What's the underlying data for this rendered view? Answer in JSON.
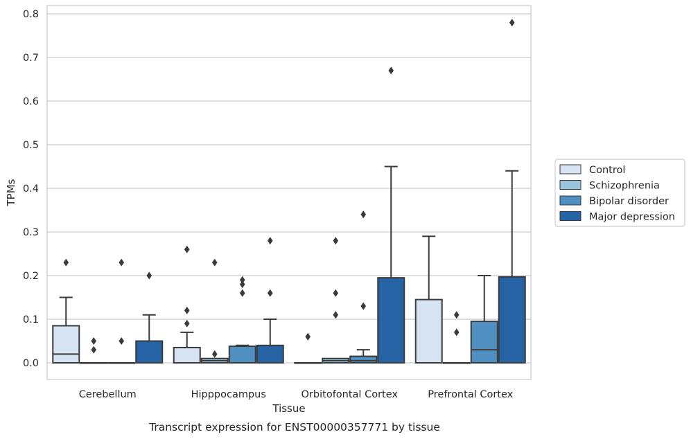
{
  "chart_data": {
    "type": "box",
    "title": "",
    "caption": "Transcript expression for ENST00000357771 by tissue",
    "xlabel": "Tissue",
    "ylabel": "TPMs",
    "ylim": [
      -0.04,
      0.82
    ],
    "yticks": [
      "0.0",
      "0.1",
      "0.2",
      "0.3",
      "0.4",
      "0.5",
      "0.6",
      "0.7",
      "0.8"
    ],
    "grid": true,
    "legend_position": "right",
    "categories": [
      "Cerebellum",
      "Hipppocampus",
      "Orbitofontal Cortex",
      "Prefrontal Cortex"
    ],
    "series": [
      {
        "name": "Control",
        "color": "#d5e3f2",
        "boxes": [
          {
            "q1": 0.0,
            "median": 0.02,
            "q3": 0.085,
            "whisker_low": 0.0,
            "whisker_high": 0.15,
            "outliers": [
              0.23
            ]
          },
          {
            "q1": 0.0,
            "median": 0.0,
            "q3": 0.035,
            "whisker_low": 0.0,
            "whisker_high": 0.07,
            "outliers": [
              0.09,
              0.12,
              0.26
            ]
          },
          {
            "q1": 0.0,
            "median": 0.0,
            "q3": 0.0,
            "whisker_low": 0.0,
            "whisker_high": 0.0,
            "outliers": [
              0.06
            ]
          },
          {
            "q1": 0.0,
            "median": 0.0,
            "q3": 0.145,
            "whisker_low": 0.0,
            "whisker_high": 0.29,
            "outliers": []
          }
        ]
      },
      {
        "name": "Schizophrenia",
        "color": "#9ac3de",
        "boxes": [
          {
            "q1": 0.0,
            "median": 0.0,
            "q3": 0.0,
            "whisker_low": 0.0,
            "whisker_high": 0.0,
            "outliers": [
              0.03,
              0.05
            ]
          },
          {
            "q1": 0.0,
            "median": 0.005,
            "q3": 0.01,
            "whisker_low": 0.0,
            "whisker_high": 0.01,
            "outliers": [
              0.02,
              0.23
            ]
          },
          {
            "q1": 0.0,
            "median": 0.005,
            "q3": 0.01,
            "whisker_low": 0.0,
            "whisker_high": 0.01,
            "outliers": [
              0.11,
              0.16,
              0.28
            ]
          },
          {
            "q1": 0.0,
            "median": 0.0,
            "q3": 0.0,
            "whisker_low": 0.0,
            "whisker_high": 0.0,
            "outliers": [
              0.07,
              0.11
            ]
          }
        ]
      },
      {
        "name": "Bipolar disorder",
        "color": "#4f8fc2",
        "boxes": [
          {
            "q1": 0.0,
            "median": 0.0,
            "q3": 0.0,
            "whisker_low": 0.0,
            "whisker_high": 0.0,
            "outliers": [
              0.05,
              0.23
            ]
          },
          {
            "q1": 0.0,
            "median": 0.0,
            "q3": 0.038,
            "whisker_low": 0.0,
            "whisker_high": 0.04,
            "outliers": [
              0.16,
              0.18,
              0.19
            ]
          },
          {
            "q1": 0.0,
            "median": 0.005,
            "q3": 0.015,
            "whisker_low": 0.0,
            "whisker_high": 0.03,
            "outliers": [
              0.13,
              0.34
            ]
          },
          {
            "q1": 0.0,
            "median": 0.03,
            "q3": 0.095,
            "whisker_low": 0.0,
            "whisker_high": 0.2,
            "outliers": []
          }
        ]
      },
      {
        "name": "Major depression",
        "color": "#2563a4",
        "boxes": [
          {
            "q1": 0.0,
            "median": 0.0,
            "q3": 0.05,
            "whisker_low": 0.0,
            "whisker_high": 0.11,
            "outliers": [
              0.2
            ]
          },
          {
            "q1": 0.0,
            "median": 0.0,
            "q3": 0.04,
            "whisker_low": 0.0,
            "whisker_high": 0.1,
            "outliers": [
              0.16,
              0.28
            ]
          },
          {
            "q1": 0.0,
            "median": 0.0,
            "q3": 0.195,
            "whisker_low": 0.0,
            "whisker_high": 0.45,
            "outliers": [
              0.67
            ]
          },
          {
            "q1": 0.0,
            "median": 0.0,
            "q3": 0.197,
            "whisker_low": 0.0,
            "whisker_high": 0.44,
            "outliers": [
              0.78
            ]
          }
        ]
      }
    ]
  }
}
